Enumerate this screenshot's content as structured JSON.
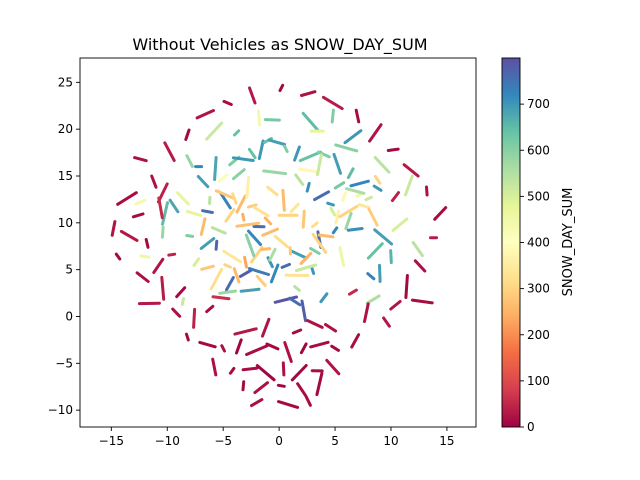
{
  "chart_data": {
    "type": "scatter",
    "title": "Without Vehicles as SNOW_DAY_SUM",
    "xlabel": "",
    "ylabel": "",
    "xlim": [
      -17.8,
      17.6
    ],
    "ylim": [
      -11.8,
      27.6
    ],
    "x_ticks": [
      -15,
      -10,
      -5,
      0,
      5,
      10,
      15
    ],
    "x_tick_labels": [
      "−15",
      "−10",
      "−5",
      "0",
      "5",
      "10",
      "15"
    ],
    "y_ticks": [
      -10,
      -5,
      0,
      5,
      10,
      15,
      20,
      25
    ],
    "y_tick_labels": [
      "−10",
      "−5",
      "0",
      "5",
      "10",
      "15",
      "20",
      "25"
    ],
    "grid": false,
    "colormap": "Spectral",
    "colorbar": {
      "label": "SNOW_DAY_SUM",
      "range": [
        0,
        800
      ],
      "ticks": [
        0,
        100,
        200,
        300,
        400,
        500,
        600,
        700
      ],
      "tick_labels": [
        "0",
        "100",
        "200",
        "300",
        "400",
        "500",
        "600",
        "700"
      ],
      "colors": [
        "#9e0142",
        "#d53e4f",
        "#f46d43",
        "#fdae61",
        "#fee08b",
        "#ffffbf",
        "#e6f598",
        "#abdda4",
        "#66c2a5",
        "#3288bd",
        "#5e4fa2"
      ]
    },
    "series": [
      {
        "description": "high-value curved strands",
        "points": [
          [
            -7.2,
            16.0,
            720
          ],
          [
            -6.8,
            14.4,
            690
          ],
          [
            -5.7,
            15.8,
            680
          ],
          [
            -4.0,
            16.6,
            610
          ],
          [
            -3.2,
            16.8,
            700
          ],
          [
            -2.4,
            17.4,
            640
          ],
          [
            -1.6,
            17.8,
            700
          ],
          [
            -1.0,
            18.8,
            640
          ],
          [
            -0.2,
            18.6,
            690
          ],
          [
            0.6,
            17.9,
            610
          ],
          [
            1.6,
            17.4,
            700
          ],
          [
            2.8,
            17.1,
            640
          ],
          [
            4.0,
            17.3,
            610
          ],
          [
            5.2,
            16.3,
            690
          ],
          [
            6.4,
            15.3,
            650
          ],
          [
            7.2,
            14.2,
            720
          ],
          [
            8.8,
            13.7,
            700
          ],
          [
            3.6,
            8.2,
            760
          ],
          [
            5.0,
            9.2,
            720
          ],
          [
            6.8,
            9.3,
            710
          ],
          [
            9.3,
            8.5,
            690
          ],
          [
            10.0,
            6.4,
            660
          ],
          [
            8.6,
            7.0,
            640
          ],
          [
            -1.8,
            9.6,
            760
          ],
          [
            -2.2,
            8.4,
            720
          ],
          [
            -5.6,
            7.6,
            770
          ],
          [
            -6.4,
            7.8,
            690
          ],
          [
            -8.0,
            8.6,
            610
          ],
          [
            -9.4,
            11.8,
            680
          ],
          [
            -10.2,
            11.0,
            650
          ],
          [
            -3.0,
            4.6,
            780
          ],
          [
            -1.8,
            4.8,
            740
          ],
          [
            -0.8,
            5.8,
            700
          ],
          [
            -0.4,
            4.6,
            720
          ],
          [
            0.6,
            5.4,
            760
          ],
          [
            1.8,
            6.6,
            690
          ],
          [
            3.0,
            4.9,
            700
          ],
          [
            -4.4,
            3.5,
            760
          ],
          [
            0.6,
            1.8,
            790
          ],
          [
            1.4,
            1.6,
            760
          ],
          [
            2.2,
            0.6,
            780
          ],
          [
            4.0,
            2.0,
            700
          ],
          [
            -2.6,
            2.8,
            690
          ],
          [
            8.2,
            4.3,
            730
          ],
          [
            9.0,
            4.6,
            690
          ],
          [
            -3.8,
            19.6,
            640
          ],
          [
            -0.6,
            21.0,
            620
          ],
          [
            2.8,
            20.8,
            650
          ],
          [
            4.8,
            21.4,
            610
          ],
          [
            6.6,
            19.2,
            700
          ],
          [
            -6.4,
            11.2,
            760
          ],
          [
            -4.8,
            12.4,
            730
          ],
          [
            2.6,
            13.8,
            710
          ],
          [
            3.8,
            12.9,
            760
          ],
          [
            4.6,
            12.0,
            700
          ]
        ]
      },
      {
        "description": "mid-value orange cores",
        "points": [
          [
            -4.8,
            13.0,
            280
          ],
          [
            -4.0,
            12.6,
            310
          ],
          [
            -3.4,
            12.0,
            260
          ],
          [
            -2.4,
            11.8,
            290
          ],
          [
            -1.6,
            11.2,
            330
          ],
          [
            -3.2,
            10.6,
            240
          ],
          [
            -4.4,
            10.8,
            300
          ],
          [
            -2.8,
            9.8,
            270
          ],
          [
            -0.6,
            13.4,
            320
          ],
          [
            0.4,
            12.4,
            260
          ],
          [
            1.4,
            11.6,
            340
          ],
          [
            0.8,
            10.8,
            300
          ],
          [
            -1.0,
            10.2,
            250
          ],
          [
            2.2,
            10.4,
            280
          ],
          [
            3.2,
            9.8,
            320
          ],
          [
            4.2,
            8.6,
            260
          ],
          [
            3.6,
            7.8,
            300
          ],
          [
            5.2,
            10.6,
            360
          ],
          [
            6.2,
            11.2,
            300
          ],
          [
            7.6,
            11.8,
            340
          ],
          [
            8.4,
            10.6,
            290
          ],
          [
            5.8,
            12.8,
            380
          ],
          [
            -0.8,
            9.0,
            260
          ],
          [
            -4.6,
            5.4,
            300
          ],
          [
            -3.8,
            4.4,
            260
          ],
          [
            -5.6,
            4.0,
            320
          ],
          [
            -6.4,
            5.2,
            280
          ],
          [
            -4.2,
            6.4,
            340
          ],
          [
            -3.0,
            5.8,
            230
          ],
          [
            -2.0,
            6.6,
            300
          ],
          [
            -1.2,
            7.2,
            260
          ],
          [
            0.2,
            8.0,
            320
          ],
          [
            1.0,
            7.0,
            280
          ],
          [
            2.4,
            6.2,
            250
          ],
          [
            1.6,
            4.4,
            330
          ],
          [
            -1.6,
            3.8,
            290
          ],
          [
            -2.8,
            13.8,
            360
          ],
          [
            -5.0,
            14.8,
            420
          ],
          [
            2.6,
            15.6,
            380
          ],
          [
            8.8,
            14.6,
            300
          ],
          [
            -6.8,
            9.6,
            260
          ],
          [
            7.2,
            13.0,
            450
          ],
          [
            -7.6,
            11.0,
            480
          ]
        ]
      },
      {
        "description": "light yellow-green clusters",
        "points": [
          [
            -8.6,
            12.6,
            470
          ],
          [
            -6.2,
            12.4,
            540
          ],
          [
            -3.6,
            15.2,
            600
          ],
          [
            -0.4,
            15.4,
            580
          ],
          [
            1.8,
            14.6,
            540
          ],
          [
            3.6,
            16.2,
            520
          ],
          [
            5.4,
            14.0,
            620
          ],
          [
            6.8,
            13.4,
            560
          ],
          [
            4.8,
            11.2,
            500
          ],
          [
            6.2,
            10.2,
            580
          ],
          [
            8.0,
            12.6,
            520
          ],
          [
            -5.4,
            9.2,
            540
          ],
          [
            -2.6,
            7.6,
            600
          ],
          [
            -0.6,
            6.6,
            560
          ],
          [
            2.4,
            5.2,
            520
          ],
          [
            3.2,
            7.0,
            610
          ],
          [
            5.6,
            6.4,
            460
          ],
          [
            -7.4,
            5.8,
            500
          ],
          [
            -4.6,
            2.6,
            580
          ],
          [
            1.6,
            3.0,
            540
          ],
          [
            -1.8,
            21.2,
            440
          ],
          [
            -5.8,
            19.8,
            520
          ],
          [
            3.4,
            19.8,
            480
          ],
          [
            9.2,
            16.2,
            540
          ],
          [
            -10.4,
            9.0,
            580
          ],
          [
            10.8,
            9.8,
            500
          ],
          [
            -12.0,
            6.4,
            460
          ],
          [
            12.4,
            7.2,
            540
          ],
          [
            -8.6,
            1.6,
            520
          ],
          [
            8.4,
            1.8,
            560
          ],
          [
            6.0,
            18.0,
            600
          ],
          [
            -8.0,
            16.6,
            580
          ],
          [
            11.6,
            14.0,
            520
          ],
          [
            -12.4,
            12.2,
            440
          ]
        ]
      },
      {
        "description": "low-value crimson strands, periphery and lower cluster",
        "points": [
          [
            -11.2,
            14.4,
            20
          ],
          [
            -10.4,
            13.2,
            40
          ],
          [
            -12.6,
            10.8,
            15
          ],
          [
            -13.4,
            8.6,
            30
          ],
          [
            -11.8,
            7.8,
            10
          ],
          [
            -10.8,
            5.4,
            25
          ],
          [
            -9.6,
            6.6,
            45
          ],
          [
            -12.2,
            4.2,
            20
          ],
          [
            -10.4,
            3.0,
            35
          ],
          [
            -8.8,
            2.6,
            10
          ],
          [
            -11.6,
            1.4,
            30
          ],
          [
            -9.2,
            0.4,
            20
          ],
          [
            -7.6,
            -0.2,
            40
          ],
          [
            -6.2,
            0.8,
            15
          ],
          [
            -5.2,
            2.0,
            60
          ],
          [
            -14.4,
            6.4,
            10
          ],
          [
            -14.8,
            9.4,
            25
          ],
          [
            -13.6,
            12.6,
            15
          ],
          [
            -12.4,
            16.8,
            20
          ],
          [
            -9.8,
            17.6,
            35
          ],
          [
            -8.2,
            19.4,
            10
          ],
          [
            -6.6,
            21.6,
            25
          ],
          [
            -4.6,
            22.8,
            15
          ],
          [
            -2.4,
            23.6,
            30
          ],
          [
            0.2,
            24.4,
            10
          ],
          [
            2.6,
            23.8,
            20
          ],
          [
            4.8,
            22.8,
            35
          ],
          [
            7.0,
            21.4,
            15
          ],
          [
            8.6,
            19.6,
            25
          ],
          [
            10.2,
            17.8,
            10
          ],
          [
            11.8,
            15.6,
            30
          ],
          [
            13.2,
            13.4,
            20
          ],
          [
            14.4,
            11.0,
            15
          ],
          [
            13.8,
            8.4,
            35
          ],
          [
            12.6,
            5.4,
            20
          ],
          [
            11.4,
            3.2,
            10
          ],
          [
            10.4,
            1.2,
            25
          ],
          [
            12.8,
            1.6,
            15
          ],
          [
            9.6,
            -0.6,
            30
          ],
          [
            7.8,
            0.4,
            20
          ],
          [
            6.6,
            2.6,
            55
          ],
          [
            -6.4,
            -3.0,
            10
          ],
          [
            -5.0,
            -3.4,
            20
          ],
          [
            -3.6,
            -3.2,
            5
          ],
          [
            -2.0,
            -3.6,
            15
          ],
          [
            -0.6,
            -3.2,
            10
          ],
          [
            0.8,
            -3.8,
            20
          ],
          [
            2.2,
            -3.4,
            5
          ],
          [
            3.6,
            -3.0,
            15
          ],
          [
            5.0,
            -3.4,
            10
          ],
          [
            -5.8,
            -5.4,
            20
          ],
          [
            -4.2,
            -5.8,
            10
          ],
          [
            -2.6,
            -5.6,
            15
          ],
          [
            -1.2,
            -6.0,
            5
          ],
          [
            0.4,
            -5.6,
            20
          ],
          [
            1.8,
            -6.0,
            10
          ],
          [
            3.4,
            -5.8,
            15
          ],
          [
            4.8,
            -5.4,
            25
          ],
          [
            -3.2,
            -7.4,
            10
          ],
          [
            -1.6,
            -7.6,
            20
          ],
          [
            0.2,
            -7.4,
            5
          ],
          [
            2.0,
            -7.8,
            15
          ],
          [
            3.6,
            -7.2,
            10
          ],
          [
            -2.0,
            -9.2,
            20
          ],
          [
            0.8,
            -9.4,
            10
          ],
          [
            2.6,
            -9.0,
            15
          ],
          [
            -1.2,
            -1.2,
            25
          ],
          [
            1.6,
            -1.6,
            15
          ],
          [
            3.2,
            -0.8,
            20
          ],
          [
            -8.2,
            -2.2,
            10
          ],
          [
            6.8,
            -2.6,
            15
          ],
          [
            -3.0,
            -1.6,
            30
          ],
          [
            4.6,
            -1.2,
            20
          ],
          [
            -10.6,
            11.6,
            55
          ],
          [
            10.4,
            12.8,
            40
          ]
        ]
      }
    ]
  }
}
